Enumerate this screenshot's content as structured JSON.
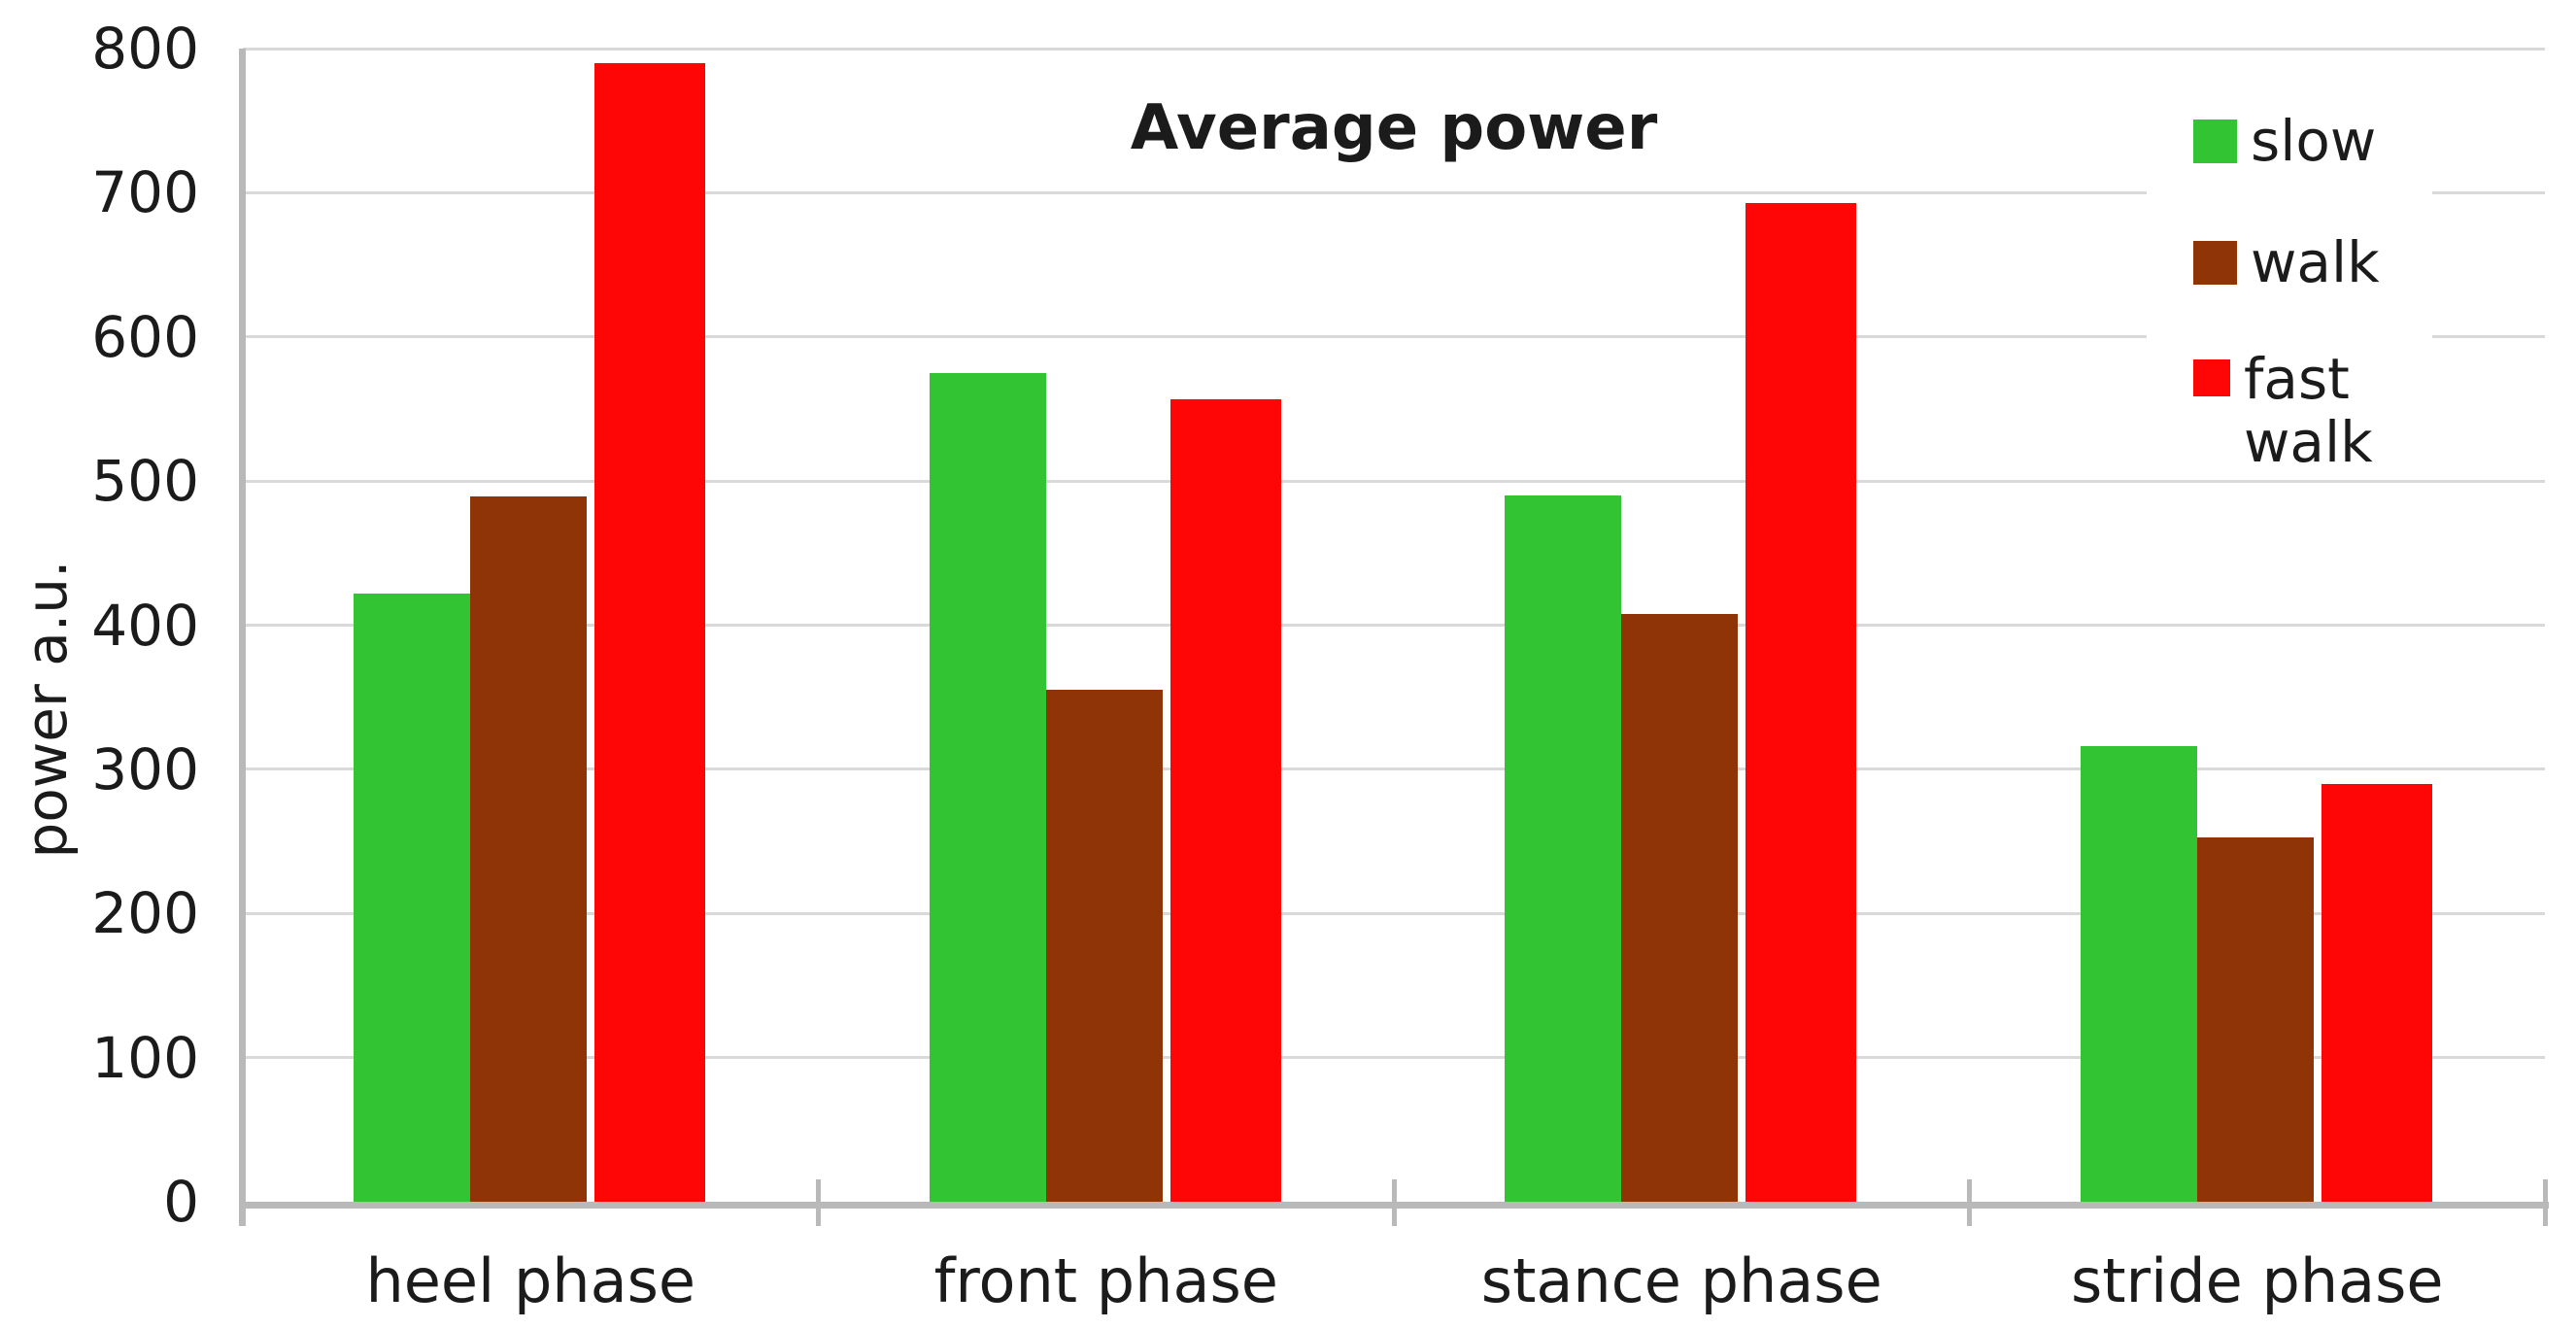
{
  "chart_data": {
    "type": "bar",
    "title": "Average power",
    "xlabel": "",
    "ylabel": "power a.u.",
    "categories": [
      "heel phase",
      "front phase",
      "stance phase",
      "stride phase"
    ],
    "series": [
      {
        "name": "slow",
        "color": "#33c433",
        "values": [
          422,
          575,
          490,
          316
        ]
      },
      {
        "name": "walk",
        "color": "#8e3407",
        "values": [
          489,
          355,
          408,
          253
        ]
      },
      {
        "name": "fast walk",
        "color": "#fe0606",
        "values": [
          790,
          557,
          693,
          290
        ]
      }
    ],
    "ylim": [
      0,
      800
    ],
    "ytick_step": 100,
    "yticks": [
      0,
      100,
      200,
      300,
      400,
      500,
      600,
      700,
      800
    ],
    "grid": true,
    "legend_position": "top-right"
  },
  "legend": {
    "items": [
      "slow",
      "walk",
      "fast walk"
    ]
  },
  "colors": {
    "gridline": "#d9d9d9",
    "axis": "#b9b9b9",
    "text": "#1b1b1b",
    "background": "#ffffff"
  }
}
